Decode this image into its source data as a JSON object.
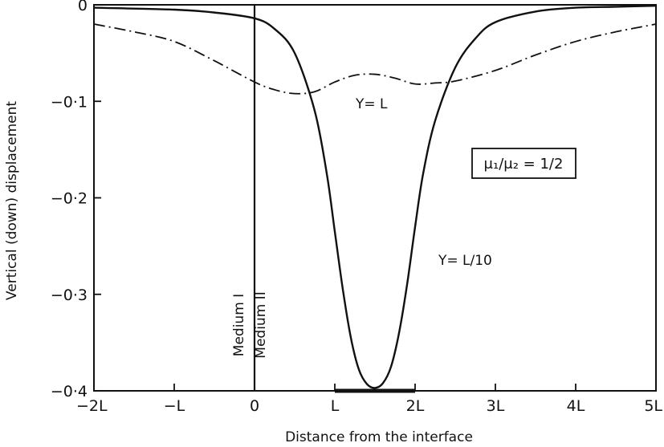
{
  "chart_data": {
    "type": "line",
    "xlabel": "Distance from the interface",
    "ylabel": "Vertical (down) displacement",
    "x_unit": "L",
    "xlim": [
      -2,
      5
    ],
    "ylim": [
      -0.4,
      0
    ],
    "x_ticks": [
      {
        "value": -2,
        "label": "−2L"
      },
      {
        "value": -1,
        "label": "−L"
      },
      {
        "value": 0,
        "label": "0"
      },
      {
        "value": 1,
        "label": "L"
      },
      {
        "value": 2,
        "label": "2L"
      },
      {
        "value": 3,
        "label": "3L"
      },
      {
        "value": 4,
        "label": "4L"
      },
      {
        "value": 5,
        "label": "5L"
      }
    ],
    "y_ticks": [
      {
        "value": 0,
        "label": "0"
      },
      {
        "value": -0.1,
        "label": "−0·1"
      },
      {
        "value": -0.2,
        "label": "−0·2"
      },
      {
        "value": -0.3,
        "label": "−0·3"
      },
      {
        "value": -0.4,
        "label": "−0·4"
      }
    ],
    "grid": false,
    "series": [
      {
        "name": "Y= L/10",
        "style": "solid",
        "x": [
          -2,
          -1,
          -0.5,
          0,
          0.25,
          0.5,
          0.75,
          0.9,
          1.0,
          1.1,
          1.2,
          1.3,
          1.4,
          1.5,
          1.6,
          1.7,
          1.8,
          1.9,
          2.0,
          2.1,
          2.25,
          2.5,
          2.75,
          3.0,
          3.5,
          4.0,
          4.5,
          5.0
        ],
        "y": [
          -0.003,
          -0.005,
          -0.008,
          -0.014,
          -0.025,
          -0.05,
          -0.11,
          -0.175,
          -0.235,
          -0.295,
          -0.345,
          -0.378,
          -0.393,
          -0.397,
          -0.392,
          -0.375,
          -0.34,
          -0.29,
          -0.23,
          -0.175,
          -0.12,
          -0.065,
          -0.035,
          -0.018,
          -0.007,
          -0.003,
          -0.002,
          -0.001
        ]
      },
      {
        "name": "Y= L",
        "style": "dashdot",
        "x": [
          -2,
          -1.5,
          -1,
          -0.5,
          0,
          0.25,
          0.5,
          0.75,
          1.0,
          1.25,
          1.5,
          1.75,
          2.0,
          2.25,
          2.5,
          3.0,
          3.5,
          4.0,
          4.5,
          5.0
        ],
        "y": [
          -0.02,
          -0.028,
          -0.038,
          -0.058,
          -0.08,
          -0.088,
          -0.092,
          -0.09,
          -0.08,
          -0.073,
          -0.072,
          -0.076,
          -0.082,
          -0.081,
          -0.079,
          -0.068,
          -0.052,
          -0.038,
          -0.028,
          -0.02
        ]
      }
    ],
    "annotations": {
      "box_label": "μ₁/μ₂ = 1/2",
      "medium_left": "Medium I",
      "medium_right": "Medium II",
      "y_l_label": "Y= L",
      "y_l10_label": "Y= L/10"
    },
    "extra_segment": {
      "x_from": 1,
      "x_to": 2
    }
  }
}
